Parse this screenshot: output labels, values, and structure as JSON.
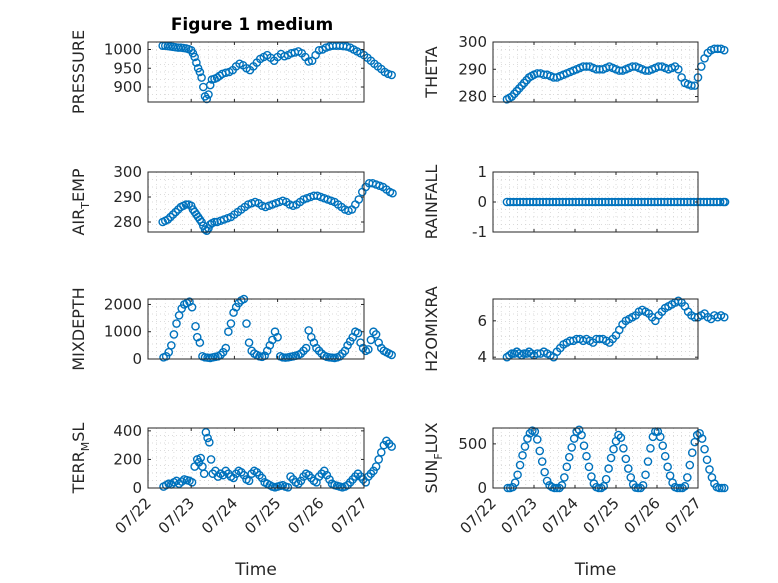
{
  "figure": {
    "title": "Figure 1 medium"
  },
  "x_axis": {
    "label": "Time",
    "ticks": [
      "07/22",
      "07/23",
      "07/24",
      "07/25",
      "07/26",
      "07/27"
    ]
  },
  "colors": {
    "marker": "#0072bd",
    "axis": "#262626",
    "grid": "#d0d0d0"
  },
  "chart_data": [
    {
      "type": "scatter",
      "ylabel": "PRESSURE",
      "ylim": [
        860,
        1020
      ],
      "yticks": [
        900,
        950,
        1000
      ],
      "grid": true,
      "x": [
        0.34,
        0.4,
        0.46,
        0.52,
        0.58,
        0.64,
        0.7,
        0.76,
        0.82,
        0.88,
        0.94,
        1.0,
        1.04,
        1.08,
        1.12,
        1.16,
        1.2,
        1.24,
        1.28,
        1.32,
        1.36,
        1.4,
        1.44,
        1.48,
        1.54,
        1.6,
        1.66,
        1.72,
        1.8,
        1.88,
        1.96,
        2.04,
        2.12,
        2.2,
        2.28,
        2.36,
        2.44,
        2.52,
        2.6,
        2.68,
        2.76,
        2.84,
        2.92,
        3.0,
        3.08,
        3.16,
        3.24,
        3.32,
        3.4,
        3.48,
        3.56,
        3.64,
        3.72,
        3.8,
        3.88,
        3.96,
        4.04,
        4.12,
        4.2,
        4.28,
        4.36,
        4.44,
        4.52,
        4.6,
        4.68,
        4.76,
        4.84,
        4.92,
        5.0,
        5.08,
        5.16,
        5.24,
        5.32,
        5.4,
        5.48,
        5.56,
        5.64
      ],
      "y": [
        1010,
        1010,
        1009,
        1008,
        1007,
        1006,
        1005,
        1005,
        1004,
        1003,
        1001,
        998,
        990,
        980,
        965,
        950,
        940,
        925,
        900,
        875,
        868,
        880,
        905,
        920,
        922,
        925,
        930,
        935,
        938,
        940,
        945,
        955,
        962,
        958,
        950,
        945,
        955,
        965,
        975,
        980,
        985,
        978,
        970,
        980,
        988,
        982,
        985,
        990,
        992,
        995,
        990,
        980,
        968,
        970,
        985,
        998,
        1000,
        1005,
        1008,
        1010,
        1010,
        1010,
        1009,
        1008,
        1005,
        1000,
        995,
        990,
        985,
        978,
        970,
        962,
        955,
        948,
        940,
        935,
        932
      ]
    },
    {
      "type": "scatter",
      "ylabel": "THETA",
      "ylim": [
        278,
        300
      ],
      "yticks": [
        280,
        290,
        300
      ],
      "grid": true,
      "x": [
        0.34,
        0.4,
        0.46,
        0.52,
        0.58,
        0.64,
        0.7,
        0.76,
        0.82,
        0.88,
        0.94,
        1.0,
        1.08,
        1.16,
        1.24,
        1.32,
        1.4,
        1.48,
        1.56,
        1.64,
        1.72,
        1.8,
        1.88,
        1.96,
        2.04,
        2.12,
        2.2,
        2.28,
        2.36,
        2.44,
        2.52,
        2.6,
        2.68,
        2.76,
        2.84,
        2.92,
        3.0,
        3.08,
        3.16,
        3.24,
        3.32,
        3.4,
        3.48,
        3.56,
        3.64,
        3.72,
        3.8,
        3.88,
        3.96,
        4.04,
        4.12,
        4.2,
        4.28,
        4.36,
        4.44,
        4.52,
        4.6,
        4.68,
        4.76,
        4.84,
        4.92,
        5.0,
        5.08,
        5.16,
        5.24,
        5.32,
        5.4,
        5.48,
        5.56,
        5.64
      ],
      "y": [
        279,
        279.5,
        280,
        281,
        282,
        283,
        284,
        285,
        286,
        287,
        287.5,
        288,
        288.5,
        288.5,
        288,
        288,
        287.5,
        287,
        287,
        287.5,
        288,
        288.5,
        289,
        289.5,
        290,
        290.5,
        291,
        291,
        291,
        290.5,
        290,
        290,
        290,
        290.5,
        291,
        290.5,
        290,
        289.5,
        289.5,
        290,
        290.5,
        291,
        291,
        290.5,
        290,
        289.5,
        289.5,
        290,
        290.5,
        291,
        291,
        290.5,
        290,
        290.5,
        291,
        290,
        287,
        285,
        284.5,
        284,
        284,
        287,
        291,
        294,
        296,
        297,
        297.5,
        297.5,
        297.5,
        297
      ]
    },
    {
      "type": "scatter",
      "ylabel": "AIR_TEMP",
      "ylim": [
        276,
        300
      ],
      "yticks": [
        280,
        290,
        300
      ],
      "grid": true,
      "x": [
        0.34,
        0.4,
        0.46,
        0.52,
        0.58,
        0.64,
        0.7,
        0.76,
        0.82,
        0.88,
        0.94,
        1.0,
        1.04,
        1.08,
        1.12,
        1.16,
        1.2,
        1.24,
        1.28,
        1.32,
        1.36,
        1.4,
        1.44,
        1.48,
        1.54,
        1.6,
        1.68,
        1.76,
        1.84,
        1.92,
        2.0,
        2.08,
        2.16,
        2.24,
        2.32,
        2.4,
        2.48,
        2.56,
        2.64,
        2.72,
        2.8,
        2.88,
        2.96,
        3.04,
        3.12,
        3.2,
        3.28,
        3.36,
        3.44,
        3.52,
        3.6,
        3.68,
        3.76,
        3.84,
        3.92,
        4.0,
        4.08,
        4.16,
        4.24,
        4.32,
        4.4,
        4.48,
        4.56,
        4.64,
        4.72,
        4.8,
        4.88,
        4.96,
        5.04,
        5.12,
        5.2,
        5.28,
        5.36,
        5.44,
        5.52,
        5.6,
        5.66
      ],
      "y": [
        280,
        280.5,
        281,
        282,
        283,
        284,
        285,
        286,
        286.5,
        287,
        287,
        286.5,
        285,
        284,
        283,
        282,
        281,
        280,
        278.5,
        277,
        276.5,
        277.5,
        279,
        279.5,
        280,
        280,
        280.5,
        281,
        281.5,
        282,
        283,
        284,
        285,
        286,
        287,
        287.5,
        288,
        287.5,
        286.5,
        286,
        286.5,
        287,
        287.5,
        288,
        288.5,
        288,
        287,
        286.5,
        287,
        288,
        289,
        289.5,
        290,
        290.5,
        290.5,
        290,
        289.5,
        289,
        288.5,
        288,
        287,
        286,
        285,
        284.5,
        285,
        287,
        289,
        292,
        294,
        295.5,
        295.5,
        295,
        294.5,
        294,
        293,
        292,
        291.5
      ]
    },
    {
      "type": "scatter",
      "ylabel": "RAINFALL",
      "ylim": [
        -1,
        1
      ],
      "yticks": [
        -1,
        0,
        1
      ],
      "grid": true,
      "x": [
        0.34,
        0.42,
        0.5,
        0.58,
        0.66,
        0.74,
        0.82,
        0.9,
        0.98,
        1.06,
        1.14,
        1.22,
        1.3,
        1.38,
        1.46,
        1.54,
        1.62,
        1.7,
        1.78,
        1.86,
        1.94,
        2.02,
        2.1,
        2.18,
        2.26,
        2.34,
        2.42,
        2.5,
        2.58,
        2.66,
        2.74,
        2.82,
        2.9,
        2.98,
        3.06,
        3.14,
        3.22,
        3.3,
        3.38,
        3.46,
        3.54,
        3.62,
        3.7,
        3.78,
        3.86,
        3.94,
        4.02,
        4.1,
        4.18,
        4.26,
        4.34,
        4.42,
        4.5,
        4.58,
        4.66,
        4.74,
        4.82,
        4.9,
        4.98,
        5.06,
        5.14,
        5.22,
        5.3,
        5.38,
        5.46,
        5.54,
        5.62,
        5.66
      ],
      "y": [
        0,
        0,
        0,
        0,
        0,
        0,
        0,
        0,
        0,
        0,
        0,
        0,
        0,
        0,
        0,
        0,
        0,
        0,
        0,
        0,
        0,
        0,
        0,
        0,
        0,
        0,
        0,
        0,
        0,
        0,
        0,
        0,
        0,
        0,
        0,
        0,
        0,
        0,
        0,
        0,
        0,
        0,
        0,
        0,
        0,
        0,
        0,
        0,
        0,
        0,
        0,
        0,
        0,
        0,
        0,
        0,
        0,
        0,
        0,
        0,
        0,
        0,
        0,
        0,
        0,
        0,
        0,
        0
      ]
    },
    {
      "type": "scatter",
      "ylabel": "MIXDEPTH",
      "ylim": [
        0,
        2200
      ],
      "yticks": [
        0,
        1000,
        2000
      ],
      "grid": true,
      "x": [
        0.36,
        0.42,
        0.48,
        0.54,
        0.6,
        0.66,
        0.72,
        0.78,
        0.84,
        0.9,
        0.96,
        1.02,
        1.1,
        1.14,
        1.2,
        1.26,
        1.32,
        1.38,
        1.44,
        1.5,
        1.56,
        1.62,
        1.68,
        1.74,
        1.8,
        1.86,
        1.92,
        1.98,
        2.04,
        2.1,
        2.16,
        2.22,
        2.28,
        2.34,
        2.4,
        2.46,
        2.52,
        2.58,
        2.64,
        2.7,
        2.76,
        2.82,
        2.88,
        2.94,
        3.0,
        3.06,
        3.12,
        3.18,
        3.24,
        3.3,
        3.36,
        3.42,
        3.48,
        3.54,
        3.6,
        3.66,
        3.72,
        3.78,
        3.84,
        3.9,
        3.96,
        4.02,
        4.08,
        4.14,
        4.2,
        4.26,
        4.32,
        4.38,
        4.44,
        4.5,
        4.56,
        4.62,
        4.68,
        4.74,
        4.8,
        4.86,
        4.92,
        4.98,
        5.04,
        5.1,
        5.16,
        5.22,
        5.28,
        5.34,
        5.4,
        5.46,
        5.52,
        5.58,
        5.64
      ],
      "y": [
        60,
        100,
        250,
        500,
        900,
        1300,
        1600,
        1850,
        2000,
        2050,
        2100,
        1900,
        1200,
        800,
        600,
        100,
        60,
        50,
        40,
        60,
        80,
        100,
        150,
        250,
        400,
        1000,
        1300,
        1700,
        1900,
        2050,
        2150,
        2200,
        1300,
        600,
        300,
        200,
        150,
        100,
        80,
        120,
        300,
        500,
        700,
        1000,
        800,
        100,
        60,
        50,
        60,
        80,
        100,
        120,
        150,
        200,
        300,
        400,
        1050,
        800,
        600,
        400,
        300,
        200,
        120,
        80,
        60,
        50,
        40,
        60,
        100,
        200,
        300,
        500,
        650,
        800,
        1000,
        950,
        600,
        400,
        300,
        350,
        700,
        1000,
        900,
        600,
        400,
        300,
        250,
        200,
        150
      ]
    },
    {
      "type": "scatter",
      "ylabel": "H2OMIXRA",
      "ylim": [
        3.9,
        7.2
      ],
      "yticks": [
        4,
        6
      ],
      "grid": true,
      "x": [
        0.34,
        0.4,
        0.46,
        0.52,
        0.58,
        0.64,
        0.7,
        0.76,
        0.82,
        0.88,
        0.94,
        1.0,
        1.08,
        1.16,
        1.24,
        1.32,
        1.4,
        1.48,
        1.56,
        1.64,
        1.72,
        1.8,
        1.88,
        1.96,
        2.04,
        2.12,
        2.2,
        2.28,
        2.36,
        2.44,
        2.52,
        2.6,
        2.68,
        2.76,
        2.84,
        2.92,
        3.0,
        3.08,
        3.16,
        3.24,
        3.32,
        3.4,
        3.48,
        3.56,
        3.64,
        3.72,
        3.8,
        3.88,
        3.96,
        4.04,
        4.12,
        4.2,
        4.28,
        4.36,
        4.44,
        4.52,
        4.6,
        4.68,
        4.76,
        4.84,
        4.92,
        5.0,
        5.08,
        5.16,
        5.24,
        5.32,
        5.4,
        5.48,
        5.56,
        5.64
      ],
      "y": [
        4,
        4.1,
        4.2,
        4.2,
        4.3,
        4.2,
        4.1,
        4.2,
        4.2,
        4.3,
        4.2,
        4.1,
        4.2,
        4.2,
        4.3,
        4.2,
        4.1,
        4.0,
        4.3,
        4.5,
        4.7,
        4.8,
        4.9,
        4.9,
        5.0,
        5.0,
        4.9,
        5.0,
        4.9,
        4.8,
        5.0,
        5.0,
        5.0,
        4.9,
        4.8,
        5.0,
        5.2,
        5.5,
        5.8,
        6.0,
        6.1,
        6.2,
        6.3,
        6.5,
        6.6,
        6.5,
        6.4,
        6.2,
        6.0,
        6.3,
        6.5,
        6.7,
        6.8,
        6.9,
        7.0,
        7.1,
        7.0,
        6.8,
        6.5,
        6.3,
        6.2,
        6.2,
        6.3,
        6.4,
        6.2,
        6.1,
        6.3,
        6.2,
        6.3,
        6.2
      ]
    },
    {
      "type": "scatter",
      "ylabel": "TERR_MSL",
      "ylim": [
        0,
        420
      ],
      "yticks": [
        0,
        200,
        400
      ],
      "grid": true,
      "x": [
        0.36,
        0.42,
        0.48,
        0.54,
        0.6,
        0.66,
        0.72,
        0.78,
        0.84,
        0.9,
        0.96,
        1.02,
        1.08,
        1.14,
        1.18,
        1.22,
        1.26,
        1.3,
        1.34,
        1.38,
        1.42,
        1.46,
        1.5,
        1.56,
        1.62,
        1.68,
        1.74,
        1.8,
        1.86,
        1.92,
        1.98,
        2.04,
        2.1,
        2.16,
        2.22,
        2.28,
        2.34,
        2.4,
        2.46,
        2.52,
        2.58,
        2.64,
        2.7,
        2.76,
        2.82,
        2.88,
        2.94,
        3.0,
        3.06,
        3.12,
        3.18,
        3.24,
        3.3,
        3.36,
        3.42,
        3.48,
        3.54,
        3.6,
        3.66,
        3.72,
        3.78,
        3.84,
        3.9,
        3.96,
        4.02,
        4.08,
        4.14,
        4.2,
        4.26,
        4.32,
        4.38,
        4.44,
        4.5,
        4.56,
        4.62,
        4.68,
        4.74,
        4.8,
        4.86,
        4.92,
        4.98,
        5.04,
        5.1,
        5.16,
        5.22,
        5.28,
        5.34,
        5.4,
        5.46,
        5.52,
        5.58,
        5.64
      ],
      "y": [
        10,
        20,
        30,
        25,
        40,
        50,
        30,
        45,
        60,
        55,
        50,
        40,
        150,
        200,
        180,
        210,
        150,
        100,
        390,
        350,
        320,
        200,
        100,
        120,
        80,
        100,
        90,
        120,
        100,
        80,
        70,
        100,
        120,
        110,
        90,
        60,
        50,
        100,
        120,
        110,
        90,
        70,
        40,
        30,
        20,
        10,
        5,
        10,
        15,
        20,
        10,
        5,
        80,
        60,
        40,
        30,
        50,
        80,
        100,
        90,
        70,
        50,
        40,
        80,
        100,
        120,
        90,
        60,
        30,
        20,
        15,
        10,
        5,
        10,
        20,
        40,
        60,
        80,
        100,
        80,
        60,
        40,
        80,
        100,
        120,
        150,
        200,
        250,
        300,
        330,
        310,
        290
      ]
    },
    {
      "type": "scatter",
      "ylabel": "SUN_FLUX",
      "ylim": [
        0,
        680
      ],
      "yticks": [
        0,
        500
      ],
      "grid": true,
      "x": [
        0.36,
        0.42,
        0.48,
        0.54,
        0.6,
        0.66,
        0.72,
        0.78,
        0.84,
        0.9,
        0.96,
        1.02,
        1.08,
        1.14,
        1.2,
        1.26,
        1.32,
        1.38,
        1.44,
        1.5,
        1.56,
        1.62,
        1.68,
        1.74,
        1.8,
        1.86,
        1.92,
        1.98,
        2.04,
        2.1,
        2.16,
        2.22,
        2.28,
        2.34,
        2.4,
        2.46,
        2.52,
        2.58,
        2.64,
        2.7,
        2.76,
        2.82,
        2.88,
        2.94,
        3.0,
        3.06,
        3.12,
        3.18,
        3.24,
        3.3,
        3.36,
        3.42,
        3.48,
        3.54,
        3.6,
        3.66,
        3.72,
        3.78,
        3.84,
        3.9,
        3.96,
        4.02,
        4.08,
        4.14,
        4.2,
        4.26,
        4.32,
        4.38,
        4.44,
        4.5,
        4.56,
        4.62,
        4.68,
        4.74,
        4.8,
        4.86,
        4.92,
        4.98,
        5.04,
        5.1,
        5.16,
        5.22,
        5.28,
        5.34,
        5.4,
        5.46,
        5.52,
        5.58,
        5.64
      ],
      "y": [
        0,
        0,
        10,
        60,
        150,
        260,
        370,
        470,
        560,
        620,
        650,
        640,
        550,
        420,
        300,
        180,
        80,
        30,
        10,
        0,
        0,
        0,
        30,
        120,
        240,
        350,
        460,
        560,
        640,
        660,
        600,
        480,
        360,
        240,
        130,
        50,
        10,
        0,
        0,
        20,
        100,
        220,
        340,
        440,
        530,
        600,
        570,
        450,
        330,
        220,
        120,
        40,
        5,
        0,
        0,
        30,
        150,
        300,
        450,
        580,
        640,
        640,
        580,
        480,
        360,
        240,
        140,
        60,
        10,
        0,
        0,
        0,
        20,
        120,
        260,
        400,
        520,
        600,
        620,
        560,
        440,
        320,
        210,
        120,
        50,
        10,
        0,
        0,
        0
      ]
    }
  ]
}
